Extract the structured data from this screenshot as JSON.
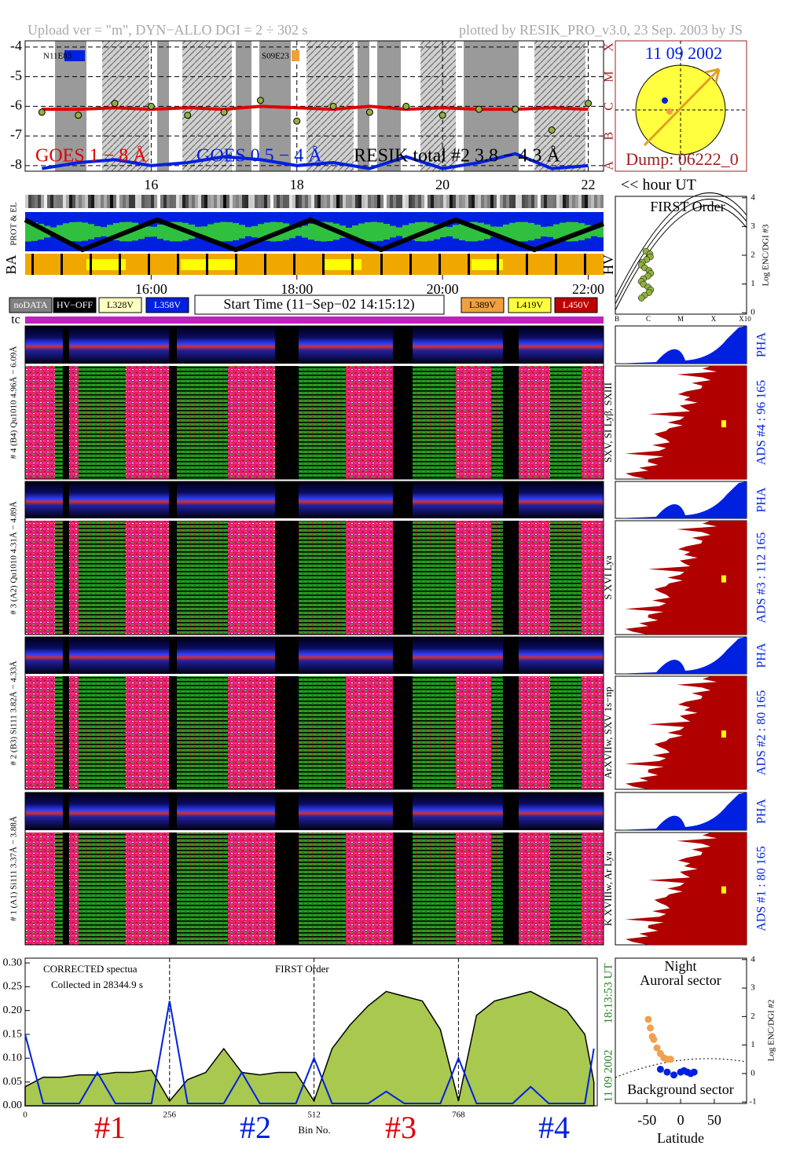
{
  "header": {
    "left": "Upload ver = \"m\", DYN−ALLO DGI =   2 ÷ 302 s",
    "right": "plotted by RESIK_PRO_v3.0, 23 Sep. 2003 by JS"
  },
  "chart_data": [
    {
      "type": "line",
      "x": [
        14.5,
        15,
        15.5,
        16,
        16.5,
        17,
        17.5,
        18,
        18.5,
        19,
        19.5,
        20,
        20.5,
        21,
        21.5,
        22
      ],
      "xlim": [
        14.27,
        22.21
      ],
      "xticks": [
        16,
        18,
        20,
        22
      ],
      "ylim": [
        -8.19,
        -3.79
      ],
      "yticks": [
        -4,
        -5,
        -6,
        -7,
        -8
      ],
      "class_labels": [
        "X",
        "M",
        "C",
        "B",
        "A"
      ],
      "annotations": [
        "N11E83",
        "S09E23"
      ],
      "series": [
        {
          "name": "GOES 1 − 8 Å",
          "color": "#e00000",
          "values": [
            -6.1,
            -6.1,
            -6.05,
            -6.1,
            -6.05,
            -6.1,
            -6.0,
            -6.05,
            -6.1,
            -6.0,
            -6.1,
            -6.05,
            -6.1,
            -6.1,
            -6.05,
            -6.1
          ]
        },
        {
          "name": "GOES 0.5 − 4 Å",
          "color": "#0020e0",
          "values": [
            -8.1,
            -7.9,
            -7.8,
            -8.0,
            -7.9,
            -7.7,
            -7.8,
            -8.0,
            -7.9,
            -8.1,
            -7.7,
            -8.1,
            -7.9,
            -7.6,
            -8.1,
            -8.0
          ]
        },
        {
          "name": "RESIK total #2  3.8 − 4.3 Å",
          "color": "#000000",
          "marker": "circle",
          "values": [
            -6.2,
            -6.3,
            -5.9,
            -6.0,
            -6.3,
            -6.2,
            -5.8,
            -6.5,
            -6.0,
            -6.2,
            -6.0,
            -6.3,
            -6.1,
            -6.1,
            -6.8,
            -5.9
          ]
        }
      ]
    },
    {
      "type": "area",
      "xlim": [
        0,
        1014
      ],
      "xticks": [
        0,
        256,
        512,
        768
      ],
      "ylim": [
        0,
        0.31
      ],
      "yticks": [
        {
          "value": 0,
          "label": "0.00"
        },
        {
          "value": 0.05,
          "label": "0.05"
        },
        {
          "value": 0.1,
          "label": "0.10"
        },
        {
          "value": 0.15,
          "label": "0.15"
        },
        {
          "value": 0.2,
          "label": "0.20"
        },
        {
          "value": 0.25,
          "label": "0.25"
        },
        {
          "value": 0.3,
          "label": "0.30"
        }
      ],
      "texts": [
        "CORRECTED spectua",
        "Collected in 28344.9 s",
        "FIRST Order"
      ],
      "x_label": "Bin No.",
      "segments": [
        {
          "label": "#1",
          "color": "#e00000"
        },
        {
          "label": "#2",
          "color": "#0020e0"
        },
        {
          "label": "#3",
          "color": "#e00000"
        },
        {
          "label": "#4",
          "color": "#0020e0"
        }
      ],
      "date": "11 09 2002",
      "time": "18:13:53 UT",
      "x": [
        0,
        32,
        64,
        96,
        128,
        160,
        192,
        224,
        256,
        288,
        320,
        352,
        384,
        416,
        448,
        480,
        512,
        544,
        576,
        608,
        640,
        672,
        704,
        736,
        768,
        800,
        832,
        864,
        896,
        928,
        960,
        992,
        1008
      ],
      "series": [
        {
          "color": "#000000",
          "fill": "#a8c850",
          "values": [
            0.04,
            0.06,
            0.06,
            0.065,
            0.065,
            0.07,
            0.07,
            0.075,
            0.01,
            0.055,
            0.07,
            0.12,
            0.07,
            0.065,
            0.07,
            0.07,
            0.01,
            0.12,
            0.17,
            0.21,
            0.24,
            0.23,
            0.22,
            0.16,
            0.01,
            0.19,
            0.22,
            0.23,
            0.24,
            0.22,
            0.2,
            0.15,
            0.05
          ]
        },
        {
          "color": "#0020e0",
          "values": [
            0.15,
            0.005,
            0.005,
            0.005,
            0.07,
            0.005,
            0.005,
            0.005,
            0.22,
            0.005,
            0.005,
            0.005,
            0.07,
            0.005,
            0.005,
            0.005,
            0.1,
            0.005,
            0.005,
            0.005,
            0.03,
            0.005,
            0.005,
            0.005,
            0.1,
            0.005,
            0.005,
            0.005,
            0.04,
            0.005,
            0.005,
            0.005,
            0.12
          ]
        }
      ]
    },
    {
      "type": "scatter",
      "texts": [
        "Night",
        "Auroral sector",
        "Background sector"
      ],
      "x_label": "Latitude",
      "y_label": "Log ENC/DGI #2",
      "xlim": [
        -97,
        98
      ],
      "xticks": [
        -50,
        0,
        50
      ],
      "ylim": [
        -1.05,
        4.05
      ],
      "yticks": [
        -1,
        0,
        1,
        2,
        3,
        4
      ],
      "series": [
        {
          "color": "#f0a050",
          "x": [
            -48,
            -45,
            -42,
            -40,
            -35,
            -30,
            -25,
            -20,
            -15
          ],
          "values": [
            1.9,
            1.6,
            1.3,
            1.2,
            0.9,
            0.7,
            0.55,
            0.5,
            0.5
          ]
        },
        {
          "color": "#0020e0",
          "x": [
            -30,
            -20,
            -10,
            0,
            5,
            10,
            15,
            20
          ],
          "values": [
            0.15,
            0.05,
            -0.05,
            0.05,
            0.1,
            0.05,
            0,
            0.05
          ]
        }
      ]
    }
  ],
  "sun": {
    "date": "11 09 2002",
    "dump": "Dump: 06222_0"
  },
  "hour_label": "<< hour UT",
  "strips": {
    "labels": [
      "PROT & EL",
      "BA",
      "HV"
    ],
    "xticks": [
      {
        "value": 16,
        "label": "16:00"
      },
      {
        "value": 18,
        "label": "18:00"
      },
      {
        "value": 20,
        "label": "20:00"
      },
      {
        "value": 22,
        "label": "22:00"
      }
    ]
  },
  "first_order": {
    "title": "FIRST Order",
    "y_label": "Log ENC/DGI #3",
    "ylim": [
      -0.05,
      4.05
    ],
    "yticks": [
      0,
      1,
      2,
      3,
      4
    ],
    "x_labels": [
      "B",
      "C",
      "M",
      "X",
      "X10"
    ]
  },
  "legend": {
    "items": [
      {
        "label": "noDATA",
        "color": "#808080"
      },
      {
        "label": "HV−OFF",
        "color": "#000000"
      },
      {
        "label": "L328V",
        "color": "#ffffc0"
      },
      {
        "label": "L358V",
        "color": "#0020e0"
      },
      {
        "label": "L389V",
        "color": "#f0a040"
      },
      {
        "label": "L419V",
        "color": "#ffff40"
      },
      {
        "label": "L450V",
        "color": "#c00000"
      }
    ],
    "start_time": "Start Time (11−Sep−02 14:15:12)",
    "tc": "tc"
  },
  "channels": [
    {
      "label": "# 4 (B4) Qu1010 4.96Å − 6.09Å",
      "pha": "PHA",
      "ads": "ADS #4 :   96 165",
      "lines": "SXV, SI Lyβ, SXIII"
    },
    {
      "label": "# 3 (A2) Qu1010 4.31Å − 4.89Å",
      "pha": "PHA",
      "ads": "ADS #3 :   112 165",
      "lines": "S XVI Lya"
    },
    {
      "label": "# 2 (B3) Si111 3.82Å − 4.33Å",
      "pha": "PHA",
      "ads": "ADS #2 :   80 165",
      "lines": "ArXVIIw, SXV 1s−np"
    },
    {
      "label": "# 1 (A1) Si111 3.37Å − 3.88Å",
      "pha": "PHA",
      "ads": "ADS #1 :   80 165",
      "lines": "K XVIIIw, Ar Lya"
    }
  ]
}
